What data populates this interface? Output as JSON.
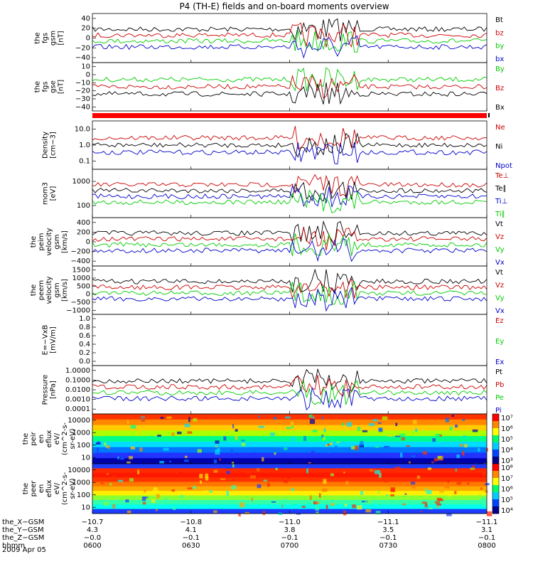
{
  "title": "P4 (TH-E) fields and on-board moments overview",
  "colors": {
    "black": "#000000",
    "red": "#cc0000",
    "green": "#00cc00",
    "blue": "#0000cc",
    "bar": "#ff0000"
  },
  "chart_data": [
    {
      "type": "line",
      "name": "fgs_gsm",
      "ylabel_lines": [
        "the",
        "fgs",
        "gsm",
        "[nT]"
      ],
      "yticks": [
        "40",
        "20",
        "0",
        "−20",
        "−40"
      ],
      "ylim": [
        -40,
        40
      ],
      "scale": "linear",
      "legend": [
        {
          "label": "Bt",
          "color": "black"
        },
        {
          "label": "bz",
          "color": "red"
        },
        {
          "label": "by",
          "color": "green"
        },
        {
          "label": "bx",
          "color": "blue"
        }
      ]
    },
    {
      "type": "line",
      "name": "fgs_gse",
      "ylabel_lines": [
        "the",
        "fgs",
        "gse",
        "[nT]"
      ],
      "yticks": [
        "10",
        "0",
        "−10",
        "−20",
        "−30",
        "−40"
      ],
      "ylim": [
        -45,
        15
      ],
      "scale": "linear",
      "legend": [
        {
          "label": "By",
          "color": "green"
        },
        {
          "label": "Bz",
          "color": "red"
        },
        {
          "label": "Bx",
          "color": "black"
        }
      ]
    },
    {
      "type": "line",
      "name": "density",
      "ylabel_lines": [
        "Density",
        "[cm−3]"
      ],
      "yticks": [
        "10.0",
        "1.0",
        "0.1"
      ],
      "ylim": [
        0.1,
        10
      ],
      "scale": "log",
      "legend": [
        {
          "label": "Ne",
          "color": "red"
        },
        {
          "label": "Ni",
          "color": "black"
        },
        {
          "label": "Npot",
          "color": "blue"
        }
      ]
    },
    {
      "type": "line",
      "name": "temperature",
      "ylabel_lines": [
        "mom3",
        "[eV]"
      ],
      "yticks": [
        "1000",
        "100"
      ],
      "ylim": [
        100,
        10000
      ],
      "scale": "log",
      "legend": [
        {
          "label": "Te⊥",
          "color": "red"
        },
        {
          "label": "Te∥",
          "color": "black"
        },
        {
          "label": "Ti⊥",
          "color": "blue"
        },
        {
          "label": "Ti∥",
          "color": "green"
        }
      ]
    },
    {
      "type": "line",
      "name": "ion_velocity",
      "ylabel_lines": [
        "the",
        "peim",
        "velocity",
        "gsm",
        "[km/s]"
      ],
      "yticks": [
        "400",
        "200",
        "0",
        "−200",
        "−400"
      ],
      "ylim": [
        -400,
        400
      ],
      "scale": "linear",
      "legend": [
        {
          "label": "Vt",
          "color": "black"
        },
        {
          "label": "Vz",
          "color": "red"
        },
        {
          "label": "Vy",
          "color": "green"
        },
        {
          "label": "Vx",
          "color": "blue"
        }
      ]
    },
    {
      "type": "line",
      "name": "electron_velocity",
      "ylabel_lines": [
        "the",
        "peem",
        "velocity",
        "gsm",
        "[km/s]"
      ],
      "yticks": [
        "1500",
        "1000",
        "500",
        "0",
        "−500",
        "−1000"
      ],
      "ylim": [
        -1200,
        1500
      ],
      "scale": "linear",
      "legend": [
        {
          "label": "Vt",
          "color": "black"
        },
        {
          "label": "Vz",
          "color": "red"
        },
        {
          "label": "Vy",
          "color": "green"
        },
        {
          "label": "Vx",
          "color": "blue"
        }
      ]
    },
    {
      "type": "line",
      "name": "efield",
      "ylabel_lines": [
        "E=−VxB",
        "[mV/m]"
      ],
      "yticks": [
        "1.0",
        "0.8",
        "0.6",
        "0.4",
        "0.2",
        "0.0"
      ],
      "ylim": [
        0,
        1
      ],
      "scale": "linear",
      "legend": [
        {
          "label": "Ez",
          "color": "red"
        },
        {
          "label": "Ey",
          "color": "green"
        },
        {
          "label": "Ex",
          "color": "blue"
        }
      ]
    },
    {
      "type": "line",
      "name": "pressure",
      "ylabel_lines": [
        "Pressure",
        "[nPa]"
      ],
      "yticks": [
        "1.0000",
        "0.1000",
        "0.0100",
        "0.0010",
        "0.0001"
      ],
      "ylim": [
        0.0001,
        1
      ],
      "scale": "log",
      "legend": [
        {
          "label": "Pt",
          "color": "black"
        },
        {
          "label": "Pb",
          "color": "red"
        },
        {
          "label": "Pe",
          "color": "green"
        },
        {
          "label": "Pi",
          "color": "blue"
        }
      ]
    },
    {
      "type": "heatmap",
      "name": "ion_eflux",
      "ylabel_lines": [
        "the",
        "peir",
        "en",
        "eflux",
        "eV/",
        "(cm^2-s-",
        "sr-eV)"
      ],
      "yticks": [
        "10000",
        "1000",
        "100",
        "10"
      ],
      "ylim": [
        5,
        20000
      ],
      "scale": "log",
      "colorbar_ticks": [
        "10⁷",
        "10⁶",
        "10⁵",
        "10⁴",
        "10³"
      ]
    },
    {
      "type": "heatmap",
      "name": "electron_eflux",
      "ylabel_lines": [
        "the",
        "peer",
        "en",
        "eflux",
        "eV/",
        "(cm^2-s-",
        "sr-eV)"
      ],
      "yticks": [
        "10000",
        "1000",
        "100",
        "10"
      ],
      "ylim": [
        8,
        20000
      ],
      "scale": "log",
      "colorbar_ticks": [
        "10⁸",
        "10⁷",
        "10⁶",
        "10⁵",
        "10⁴"
      ]
    }
  ],
  "xaxis": {
    "rows": [
      {
        "label": "the_X−GSM",
        "values": [
          "−10.7",
          "−10.8",
          "−11.0",
          "−11.1",
          "−11.1"
        ]
      },
      {
        "label": "the_Y−GSM",
        "values": [
          "4.3",
          "4.1",
          "3.8",
          "3.5",
          "3.1"
        ]
      },
      {
        "label": "the_Z−GSM",
        "values": [
          "−0.0",
          "−0.1",
          "−0.1",
          "−0.1",
          "−0.1"
        ]
      },
      {
        "label": "hhmm",
        "values": [
          "0600",
          "0630",
          "0700",
          "0730",
          "0800"
        ]
      }
    ],
    "date": "2009 Apr 05"
  }
}
